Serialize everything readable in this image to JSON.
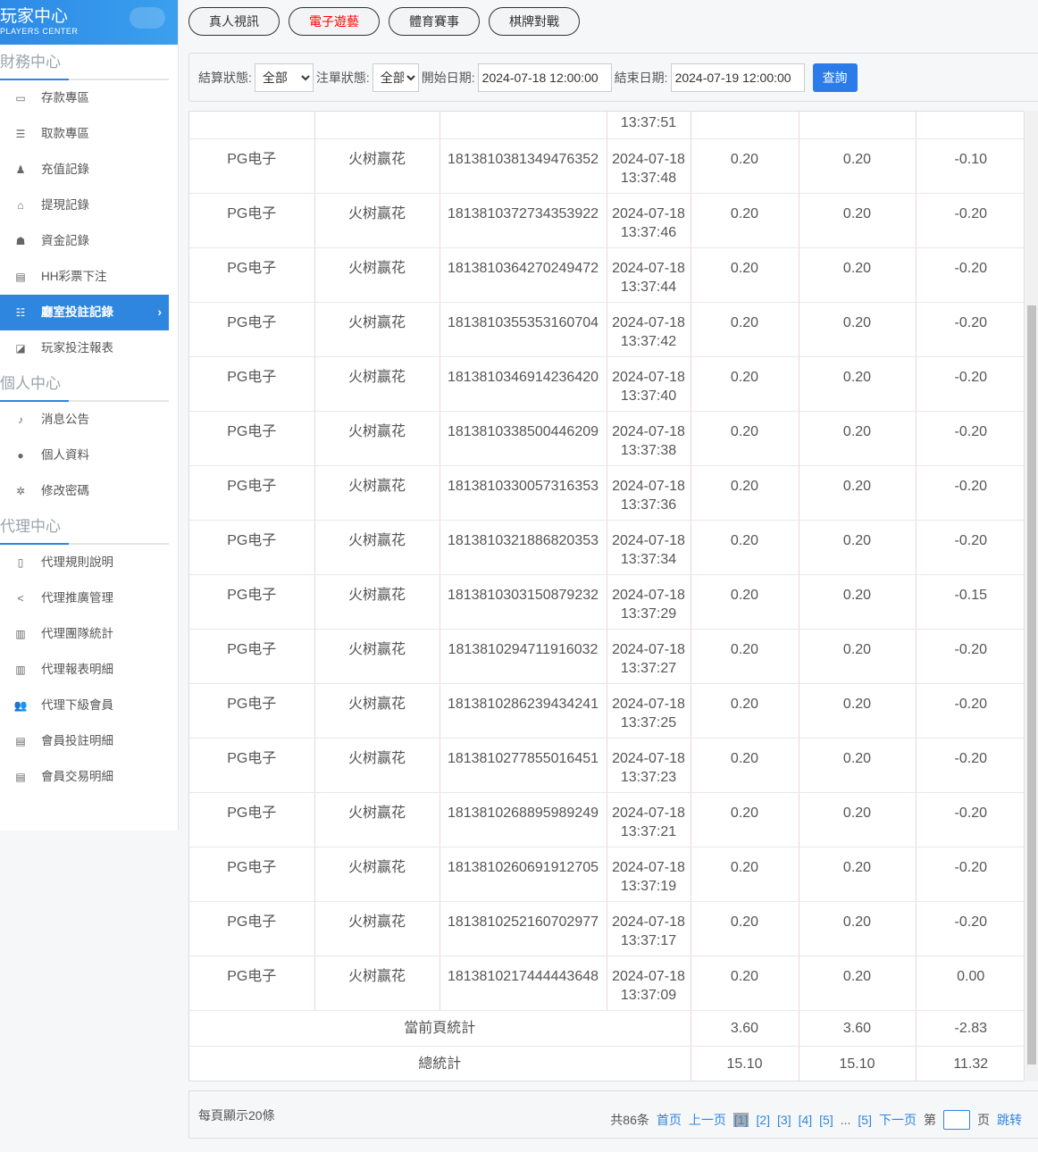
{
  "logo": {
    "title": "玩家中心",
    "subtitle": "PLAYERS CENTER"
  },
  "sidebar": {
    "sections": [
      {
        "title": "財務中心",
        "items": [
          {
            "label": "存款專區",
            "icon": "card-icon"
          },
          {
            "label": "取款專區",
            "icon": "hand-icon"
          },
          {
            "label": "充值記錄",
            "icon": "money-bag-icon"
          },
          {
            "label": "提現記錄",
            "icon": "wallet-icon"
          },
          {
            "label": "資金記錄",
            "icon": "piggy-icon"
          },
          {
            "label": "HH彩票下注",
            "icon": "list-icon"
          },
          {
            "label": "廳室投註記錄",
            "icon": "list-bullet-icon",
            "active": true
          },
          {
            "label": "玩家投注報表",
            "icon": "chart-icon"
          }
        ]
      },
      {
        "title": "個人中心",
        "items": [
          {
            "label": "消息公告",
            "icon": "bell-icon"
          },
          {
            "label": "個人資料",
            "icon": "user-icon"
          },
          {
            "label": "修改密碼",
            "icon": "gear-icon"
          }
        ]
      },
      {
        "title": "代理中心",
        "items": [
          {
            "label": "代理規則說明",
            "icon": "file-icon"
          },
          {
            "label": "代理推廣管理",
            "icon": "share-icon"
          },
          {
            "label": "代理團隊統計",
            "icon": "book-icon"
          },
          {
            "label": "代理報表明細",
            "icon": "book-icon"
          },
          {
            "label": "代理下級會員",
            "icon": "users-icon"
          },
          {
            "label": "會員投註明細",
            "icon": "doc-icon"
          },
          {
            "label": "會員交易明細",
            "icon": "doc-icon"
          }
        ]
      }
    ]
  },
  "tabs": [
    {
      "label": "真人視訊"
    },
    {
      "label": "電子遊藝",
      "active": true
    },
    {
      "label": "體育賽事"
    },
    {
      "label": "棋牌對戰"
    }
  ],
  "filter": {
    "settle_label": "結算狀態:",
    "settle_value": "全部",
    "order_label": "注單狀態:",
    "order_value": "全部",
    "start_label": "開始日期:",
    "start_value": "2024-07-18 12:00:00",
    "end_label": "結束日期:",
    "end_value": "2024-07-19 12:00:00",
    "query": "查詢"
  },
  "table": {
    "partial_time": "13:37:51",
    "rows": [
      [
        "PG电子",
        "火树赢花",
        "1813810381349476352",
        "2024-07-18",
        "13:37:48",
        "0.20",
        "0.20",
        "-0.10"
      ],
      [
        "PG电子",
        "火树赢花",
        "1813810372734353922",
        "2024-07-18",
        "13:37:46",
        "0.20",
        "0.20",
        "-0.20"
      ],
      [
        "PG电子",
        "火树赢花",
        "1813810364270249472",
        "2024-07-18",
        "13:37:44",
        "0.20",
        "0.20",
        "-0.20"
      ],
      [
        "PG电子",
        "火树赢花",
        "1813810355353160704",
        "2024-07-18",
        "13:37:42",
        "0.20",
        "0.20",
        "-0.20"
      ],
      [
        "PG电子",
        "火树赢花",
        "1813810346914236420",
        "2024-07-18",
        "13:37:40",
        "0.20",
        "0.20",
        "-0.20"
      ],
      [
        "PG电子",
        "火树赢花",
        "1813810338500446209",
        "2024-07-18",
        "13:37:38",
        "0.20",
        "0.20",
        "-0.20"
      ],
      [
        "PG电子",
        "火树赢花",
        "1813810330057316353",
        "2024-07-18",
        "13:37:36",
        "0.20",
        "0.20",
        "-0.20"
      ],
      [
        "PG电子",
        "火树赢花",
        "1813810321886820353",
        "2024-07-18",
        "13:37:34",
        "0.20",
        "0.20",
        "-0.20"
      ],
      [
        "PG电子",
        "火树赢花",
        "1813810303150879232",
        "2024-07-18",
        "13:37:29",
        "0.20",
        "0.20",
        "-0.15"
      ],
      [
        "PG电子",
        "火树赢花",
        "1813810294711916032",
        "2024-07-18",
        "13:37:27",
        "0.20",
        "0.20",
        "-0.20"
      ],
      [
        "PG电子",
        "火树赢花",
        "1813810286239434241",
        "2024-07-18",
        "13:37:25",
        "0.20",
        "0.20",
        "-0.20"
      ],
      [
        "PG电子",
        "火树赢花",
        "1813810277855016451",
        "2024-07-18",
        "13:37:23",
        "0.20",
        "0.20",
        "-0.20"
      ],
      [
        "PG电子",
        "火树赢花",
        "1813810268895989249",
        "2024-07-18",
        "13:37:21",
        "0.20",
        "0.20",
        "-0.20"
      ],
      [
        "PG电子",
        "火树赢花",
        "1813810260691912705",
        "2024-07-18",
        "13:37:19",
        "0.20",
        "0.20",
        "-0.20"
      ],
      [
        "PG电子",
        "火树赢花",
        "1813810252160702977",
        "2024-07-18",
        "13:37:17",
        "0.20",
        "0.20",
        "-0.20"
      ],
      [
        "PG电子",
        "火树赢花",
        "1813810217444443648",
        "2024-07-18",
        "13:37:09",
        "0.20",
        "0.20",
        "0.00"
      ]
    ],
    "page_total": {
      "label": "當前頁統計",
      "v1": "3.60",
      "v2": "3.60",
      "v3": "-2.83"
    },
    "grand_total": {
      "label": "總統計",
      "v1": "15.10",
      "v2": "15.10",
      "v3": "11.32"
    }
  },
  "pager": {
    "per_page": "每頁顯示20條",
    "total": "共86条",
    "first": "首页",
    "prev": "上一页",
    "pages": [
      "[1]",
      "[2]",
      "[3]",
      "[4]",
      "[5]"
    ],
    "ellipsis": "...",
    "last": "[5]",
    "next": "下一页",
    "goto_pre": "第",
    "goto_post": "页",
    "jump": "跳转"
  }
}
